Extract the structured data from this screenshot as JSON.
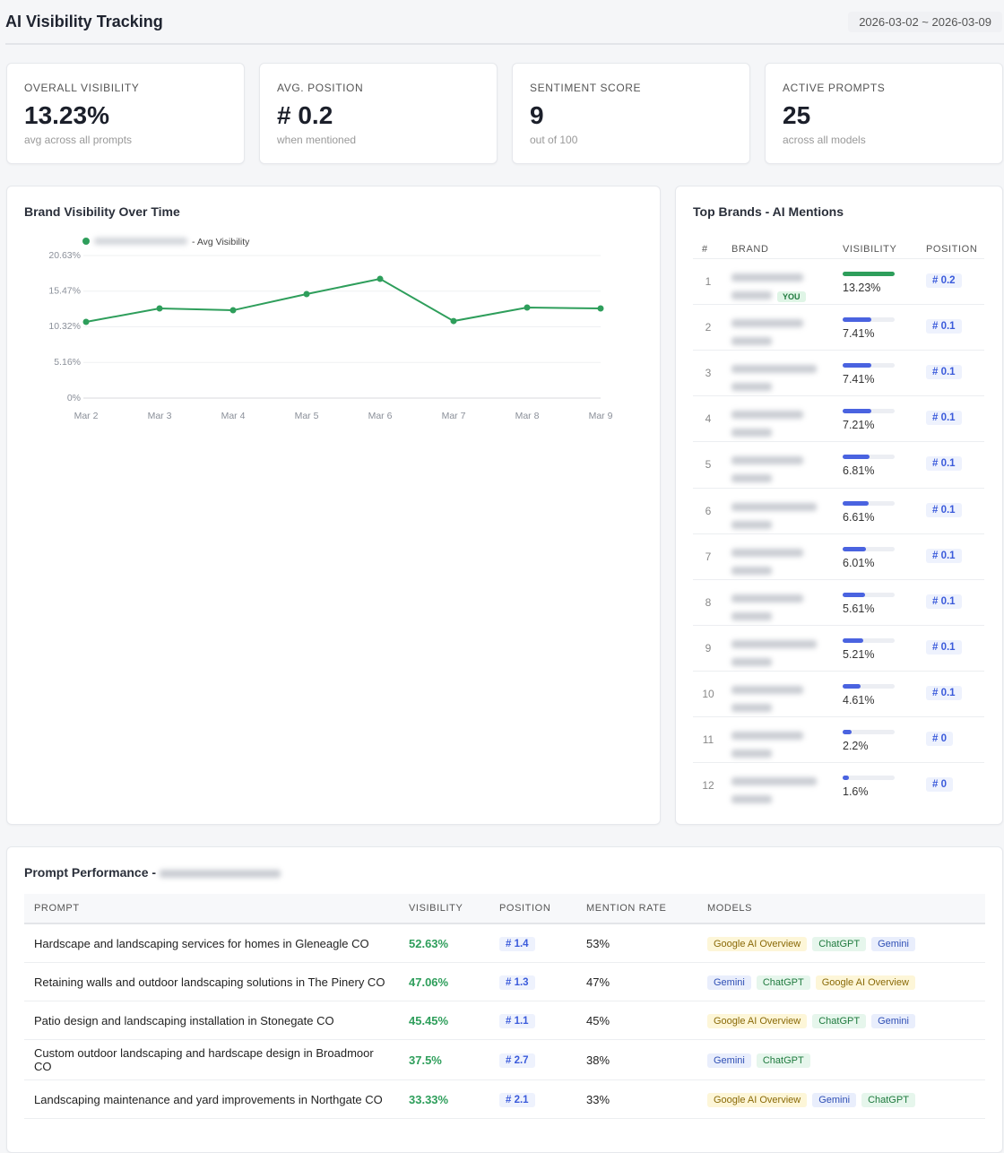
{
  "header": {
    "title": "AI Visibility Tracking",
    "date_range": "2026-03-02 ~ 2026-03-09"
  },
  "stats": [
    {
      "label": "OVERALL VISIBILITY",
      "value": "13.23%",
      "note": "avg across all prompts"
    },
    {
      "label": "AVG. POSITION",
      "value": "# 0.2",
      "note": "when mentioned"
    },
    {
      "label": "SENTIMENT SCORE",
      "value": "9",
      "note": "out of 100"
    },
    {
      "label": "ACTIVE PROMPTS",
      "value": "25",
      "note": "across all models"
    }
  ],
  "chart_data": {
    "type": "line",
    "title": "Brand Visibility Over Time",
    "categories": [
      "Mar 2",
      "Mar 3",
      "Mar 4",
      "Mar 5",
      "Mar 6",
      "Mar 7",
      "Mar 8",
      "Mar 9"
    ],
    "series": [
      {
        "name": "- Avg Visibility",
        "color": "#2e9e5b",
        "values": [
          11.03,
          12.97,
          12.71,
          15.05,
          17.25,
          11.15,
          13.1,
          12.97
        ]
      }
    ],
    "ylim": [
      0,
      20.63
    ],
    "yticks": [
      {
        "value": 0,
        "label": "0%"
      },
      {
        "value": 5.16,
        "label": "5.16%"
      },
      {
        "value": 10.32,
        "label": "10.32%"
      },
      {
        "value": 15.47,
        "label": "15.47%"
      },
      {
        "value": 20.63,
        "label": "20.63%"
      }
    ],
    "grid": true
  },
  "brands": {
    "title": "Top Brands - AI Mentions",
    "columns": [
      "#",
      "BRAND",
      "VISIBILITY",
      "POSITION"
    ],
    "you_badge": "YOU",
    "bar_color": "#4a63e0",
    "own_bar_color": "#2e9e5b",
    "rows": [
      {
        "rank": "1",
        "visibility": 13.23,
        "visibility_label": "13.23%",
        "position": "# 0.2",
        "own": true
      },
      {
        "rank": "2",
        "visibility": 7.41,
        "visibility_label": "7.41%",
        "position": "# 0.1"
      },
      {
        "rank": "3",
        "visibility": 7.41,
        "visibility_label": "7.41%",
        "position": "# 0.1"
      },
      {
        "rank": "4",
        "visibility": 7.21,
        "visibility_label": "7.21%",
        "position": "# 0.1"
      },
      {
        "rank": "5",
        "visibility": 6.81,
        "visibility_label": "6.81%",
        "position": "# 0.1"
      },
      {
        "rank": "6",
        "visibility": 6.61,
        "visibility_label": "6.61%",
        "position": "# 0.1"
      },
      {
        "rank": "7",
        "visibility": 6.01,
        "visibility_label": "6.01%",
        "position": "# 0.1"
      },
      {
        "rank": "8",
        "visibility": 5.61,
        "visibility_label": "5.61%",
        "position": "# 0.1"
      },
      {
        "rank": "9",
        "visibility": 5.21,
        "visibility_label": "5.21%",
        "position": "# 0.1"
      },
      {
        "rank": "10",
        "visibility": 4.61,
        "visibility_label": "4.61%",
        "position": "# 0.1"
      },
      {
        "rank": "11",
        "visibility": 2.2,
        "visibility_label": "2.2%",
        "position": "# 0"
      },
      {
        "rank": "12",
        "visibility": 1.6,
        "visibility_label": "1.6%",
        "position": "# 0"
      }
    ]
  },
  "prompts": {
    "title": "Prompt Performance -",
    "columns": [
      "PROMPT",
      "VISIBILITY",
      "POSITION",
      "MENTION RATE",
      "MODELS"
    ],
    "rows": [
      {
        "prompt": "Hardscape and landscaping services for homes in Gleneagle CO",
        "visibility": "52.63%",
        "position": "# 1.4",
        "mention_rate": "53%",
        "models": [
          {
            "name": "Google AI Overview",
            "color": "#8a6a08",
            "background": "#fdf6d8"
          },
          {
            "name": "ChatGPT",
            "color": "#1f7a3e",
            "background": "#e6f6ec"
          },
          {
            "name": "Gemini",
            "color": "#2f4fb5",
            "background": "#e9eefc"
          }
        ]
      },
      {
        "prompt": "Retaining walls and outdoor landscaping solutions in The Pinery CO",
        "visibility": "47.06%",
        "position": "# 1.3",
        "mention_rate": "47%",
        "models": [
          {
            "name": "Gemini",
            "color": "#2f4fb5",
            "background": "#e9eefc"
          },
          {
            "name": "ChatGPT",
            "color": "#1f7a3e",
            "background": "#e6f6ec"
          },
          {
            "name": "Google AI Overview",
            "color": "#8a6a08",
            "background": "#fdf6d8"
          }
        ]
      },
      {
        "prompt": "Patio design and landscaping installation in Stonegate CO",
        "visibility": "45.45%",
        "position": "# 1.1",
        "mention_rate": "45%",
        "models": [
          {
            "name": "Google AI Overview",
            "color": "#8a6a08",
            "background": "#fdf6d8"
          },
          {
            "name": "ChatGPT",
            "color": "#1f7a3e",
            "background": "#e6f6ec"
          },
          {
            "name": "Gemini",
            "color": "#2f4fb5",
            "background": "#e9eefc"
          }
        ]
      },
      {
        "prompt": "Custom outdoor landscaping and hardscape design in Broadmoor CO",
        "visibility": "37.5%",
        "position": "# 2.7",
        "mention_rate": "38%",
        "models": [
          {
            "name": "Gemini",
            "color": "#2f4fb5",
            "background": "#e9eefc"
          },
          {
            "name": "ChatGPT",
            "color": "#1f7a3e",
            "background": "#e6f6ec"
          }
        ]
      },
      {
        "prompt": "Landscaping maintenance and yard improvements in Northgate CO",
        "visibility": "33.33%",
        "position": "# 2.1",
        "mention_rate": "33%",
        "models": [
          {
            "name": "Google AI Overview",
            "color": "#8a6a08",
            "background": "#fdf6d8"
          },
          {
            "name": "Gemini",
            "color": "#2f4fb5",
            "background": "#e9eefc"
          },
          {
            "name": "ChatGPT",
            "color": "#1f7a3e",
            "background": "#e6f6ec"
          }
        ]
      }
    ]
  }
}
